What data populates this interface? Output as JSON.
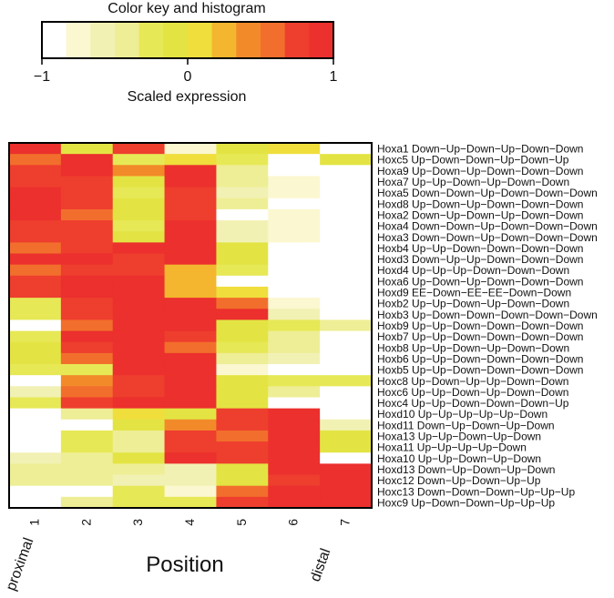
{
  "chart_data": {
    "type": "heatmap",
    "color_key": {
      "title": "Color key and histogram",
      "label": "Scaled expression",
      "ticks": [
        "−1",
        "0",
        "1"
      ],
      "tick_values": [
        -1,
        0,
        1
      ],
      "range": [
        -1,
        1
      ],
      "colors": [
        "#ffffff",
        "#fbf7d0",
        "#f2f1b4",
        "#eeee96",
        "#e7e856",
        "#e3e443",
        "#efde3c",
        "#f3b62e",
        "#f38a2a",
        "#f26e2c",
        "#ee3e2e",
        "#eb302d"
      ]
    },
    "xlabel": "Position",
    "x_categories": [
      "1",
      "2",
      "3",
      "4",
      "5",
      "6",
      "7"
    ],
    "x_annotations": {
      "left": "proximal",
      "right": "distal"
    },
    "rows": [
      {
        "label": "Hoxa1 Down−Up−Down−Up−Down−Down",
        "values": [
          0.9,
          -0.1,
          0.7,
          -0.7,
          -0.1,
          0.1,
          -1.0
        ]
      },
      {
        "label": "Hoxc5 Up−Down−Down−Up−Down−Up",
        "values": [
          0.6,
          0.9,
          -0.2,
          0.0,
          -0.2,
          -1.0,
          -0.1
        ]
      },
      {
        "label": "Hoxa9 Up−Down−Up−Down−Down−Down",
        "values": [
          0.8,
          0.9,
          0.4,
          0.9,
          -0.5,
          -1.0,
          -1.0
        ]
      },
      {
        "label": "Hoxa7 Up−Up−Down−Up−Down−Down",
        "values": [
          0.8,
          0.7,
          -0.1,
          0.9,
          -0.4,
          -0.8,
          -1.0
        ]
      },
      {
        "label": "Hoxa5 Down−Down−Up−Down−Down−Down",
        "values": [
          0.9,
          0.8,
          -0.2,
          0.7,
          -0.6,
          -0.8,
          -1.0
        ]
      },
      {
        "label": "Hoxd8 Up−Down−Up−Down−Down−Down",
        "values": [
          0.9,
          0.8,
          -0.1,
          0.8,
          -0.4,
          -1.0,
          -1.0
        ]
      },
      {
        "label": "Hoxa2 Down−Up−Down−Up−Down−Down",
        "values": [
          0.9,
          0.6,
          -0.1,
          0.8,
          -1.0,
          -0.8,
          -1.0
        ]
      },
      {
        "label": "Hoxa4 Down−Down−Up−Down−Down−Down",
        "values": [
          0.8,
          0.8,
          -0.2,
          0.9,
          -0.6,
          -0.8,
          -1.0
        ]
      },
      {
        "label": "Hoxa3 Down−Down−Up−Down−Down−Down",
        "values": [
          0.8,
          0.8,
          -0.1,
          0.9,
          -0.6,
          -0.8,
          -1.0
        ]
      },
      {
        "label": "Hoxb4 Up−Up−Down−Down−Down−Down",
        "values": [
          0.5,
          0.8,
          0.9,
          0.9,
          -0.1,
          -1.0,
          -1.0
        ]
      },
      {
        "label": "Hoxd3 Down−Up−Up−Down−Down−Down",
        "values": [
          0.9,
          0.9,
          0.7,
          0.9,
          -0.1,
          -1.0,
          -1.0
        ]
      },
      {
        "label": "Hoxd4 Up−Up−Up−Down−Down−Down",
        "values": [
          0.6,
          0.8,
          0.8,
          0.3,
          -0.2,
          -1.0,
          -1.0
        ]
      },
      {
        "label": "Hoxa6 Up−Down−Up−Down−Down−Down",
        "values": [
          0.8,
          0.9,
          0.9,
          0.3,
          -1.0,
          -1.0,
          -1.0
        ]
      },
      {
        "label": "Hoxd9 EE−Down−EE−EE−Down−Down",
        "values": [
          0.8,
          0.9,
          0.9,
          0.2,
          0.0,
          -1.0,
          -1.0
        ]
      },
      {
        "label": "Hoxb2 Up−Up−Down−Up−Down−Down",
        "values": [
          -0.2,
          0.7,
          0.9,
          0.9,
          0.6,
          -0.8,
          -1.0
        ]
      },
      {
        "label": "Hoxb3 Up−Down−Down−Down−Down−Down",
        "values": [
          -0.2,
          0.7,
          0.9,
          0.9,
          0.9,
          -0.6,
          -1.0
        ]
      },
      {
        "label": "Hoxb9 Up−Up−Down−Down−Down−Down",
        "values": [
          -1.0,
          0.5,
          0.9,
          0.9,
          -0.1,
          -0.2,
          -0.5
        ]
      },
      {
        "label": "Hoxb7 Up−Up−Down−Down−Down−Down",
        "values": [
          -0.2,
          0.9,
          0.9,
          0.8,
          -0.1,
          -0.5,
          -1.0
        ]
      },
      {
        "label": "Hoxb8 Up−Up−Down−Up−Down−Down",
        "values": [
          -0.1,
          0.8,
          0.9,
          0.6,
          -0.3,
          -0.5,
          -1.0
        ]
      },
      {
        "label": "Hoxb6 Up−Up−Down−Down−Down−Down",
        "values": [
          -0.1,
          0.6,
          0.9,
          0.9,
          -0.5,
          -0.6,
          -1.0
        ]
      },
      {
        "label": "Hoxb5 Up−Up−Down−Down−Down−Down",
        "values": [
          -0.2,
          -0.3,
          0.9,
          0.9,
          -0.7,
          -1.0,
          -1.0
        ]
      },
      {
        "label": "Hoxc8 Up−Down−Up−Up−Down−Down",
        "values": [
          -1.0,
          0.4,
          0.7,
          0.9,
          -0.1,
          -0.2,
          -0.2
        ]
      },
      {
        "label": "Hoxc6 Up−Up−Down−Up−Down−Down",
        "values": [
          -0.6,
          0.6,
          0.7,
          0.9,
          -0.1,
          -0.4,
          -1.0
        ]
      },
      {
        "label": "Hoxc4 Up−Up−Down−Down−Down−Up",
        "values": [
          -0.2,
          0.8,
          0.9,
          0.9,
          -0.1,
          -1.0,
          -1.0
        ]
      },
      {
        "label": "Hoxd10 Up−Up−Up−Up−Up−Down",
        "values": [
          -1.0,
          -0.4,
          0.0,
          -0.1,
          0.8,
          0.9,
          -1.0
        ]
      },
      {
        "label": "Hoxd11 Down−Up−Down−Up−Down",
        "values": [
          -1.0,
          -0.9,
          -0.1,
          0.4,
          0.8,
          0.9,
          -0.6
        ]
      },
      {
        "label": "Hoxa13 Up−Up−Down−Up−Down",
        "values": [
          -1.0,
          -0.2,
          -0.5,
          0.8,
          0.6,
          0.9,
          -0.1
        ]
      },
      {
        "label": "Hoxa11 Up−Up−Up−Up−Down",
        "values": [
          -1.0,
          -0.2,
          -0.5,
          0.7,
          0.8,
          0.9,
          -0.1
        ]
      },
      {
        "label": "Hoxa10 Up−Up−Down−Up−Down",
        "values": [
          -0.6,
          -0.5,
          -0.1,
          0.9,
          0.8,
          0.9,
          -1.0
        ]
      },
      {
        "label": "Hoxd13 Down−Up−Down−Up−Down",
        "values": [
          -0.4,
          -0.5,
          -0.5,
          -0.6,
          -0.1,
          0.9,
          0.9
        ]
      },
      {
        "label": "Hoxc12 Down−Up−Down−Up−Up",
        "values": [
          -0.5,
          -0.5,
          -0.6,
          -0.6,
          -0.1,
          0.8,
          0.9
        ]
      },
      {
        "label": "Hoxc13 Down−Down−Down−Up−Up−Up",
        "values": [
          -1.0,
          -1.0,
          -0.2,
          -0.8,
          0.6,
          0.9,
          0.9
        ]
      },
      {
        "label": "Hoxc9 Up−Down−Down−Up−Up−Up",
        "values": [
          -1.0,
          -0.4,
          -0.3,
          -0.3,
          0.8,
          0.9,
          0.9
        ]
      }
    ]
  }
}
